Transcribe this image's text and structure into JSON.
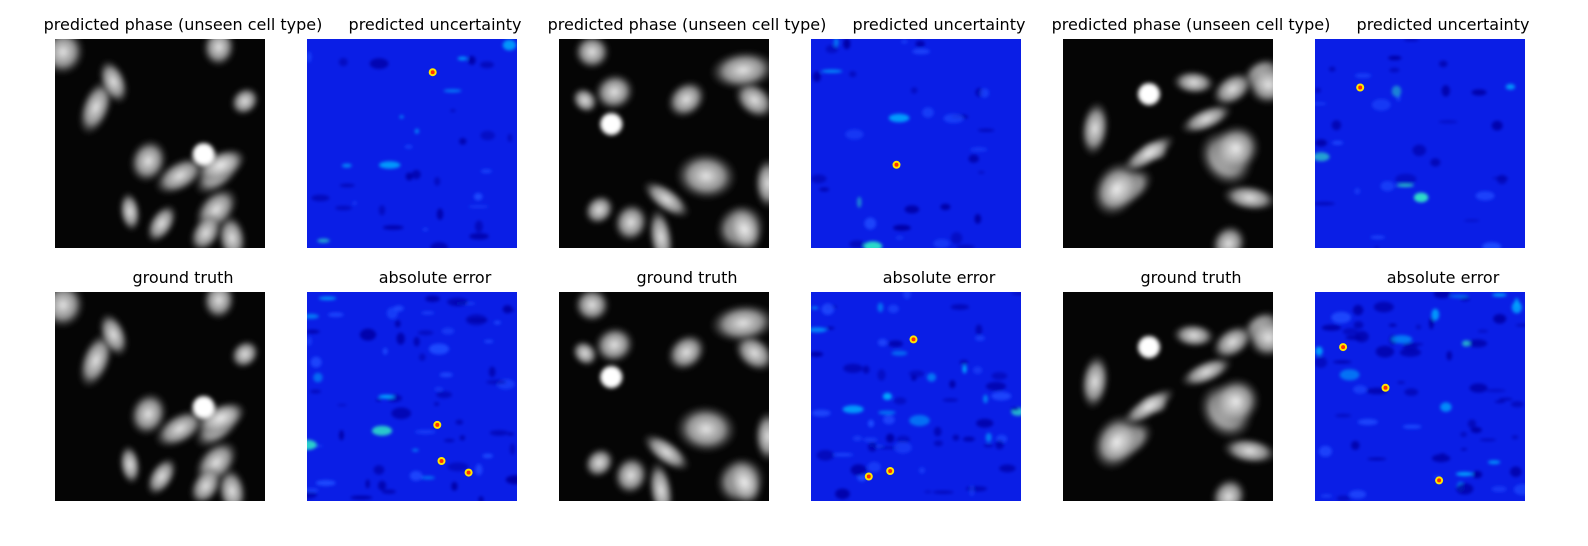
{
  "figure": {
    "rows": [
      {
        "panels": [
          {
            "title": "predicted phase (unseen cell type)",
            "kind": "phase",
            "seed": 11
          },
          {
            "title": "predicted uncertainty",
            "kind": "uncertainty",
            "seed": 12
          },
          {
            "title": "predicted phase (unseen cell type)",
            "kind": "phase",
            "seed": 21
          },
          {
            "title": "predicted uncertainty",
            "kind": "uncertainty",
            "seed": 22
          },
          {
            "title": "predicted phase (unseen cell type)",
            "kind": "phase",
            "seed": 31
          },
          {
            "title": "predicted uncertainty",
            "kind": "uncertainty",
            "seed": 32
          }
        ]
      },
      {
        "panels": [
          {
            "title": "ground truth",
            "kind": "phase",
            "seed": 11
          },
          {
            "title": "absolute error",
            "kind": "error",
            "seed": 13
          },
          {
            "title": "ground truth",
            "kind": "phase",
            "seed": 21
          },
          {
            "title": "absolute error",
            "kind": "error",
            "seed": 23
          },
          {
            "title": "ground truth",
            "kind": "phase",
            "seed": 31
          },
          {
            "title": "absolute error",
            "kind": "error",
            "seed": 33
          }
        ]
      }
    ],
    "colormaps": {
      "phase": "grayscale",
      "uncertainty": "jet",
      "error": "jet"
    }
  }
}
